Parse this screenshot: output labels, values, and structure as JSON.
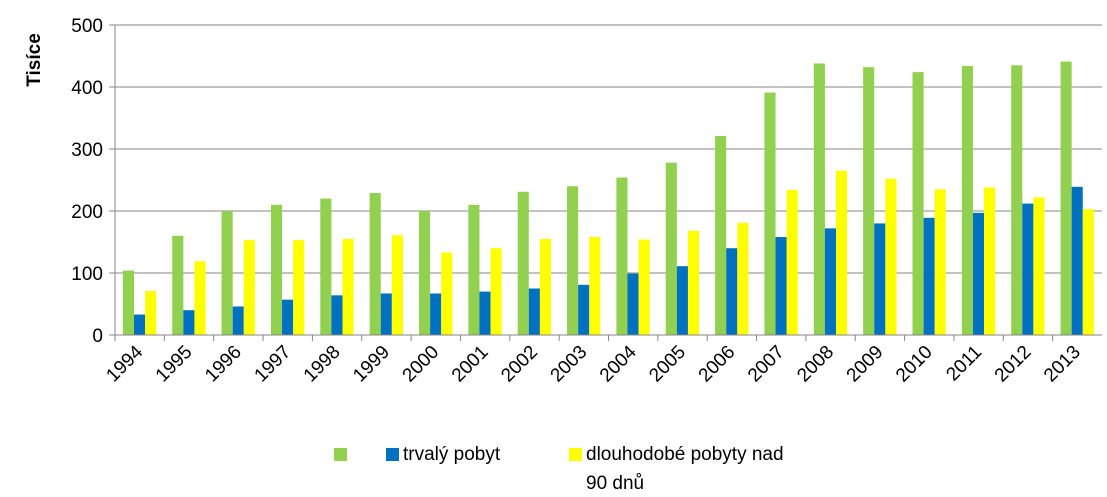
{
  "chart_data": {
    "type": "bar",
    "y_label": "Tisíce",
    "categories": [
      "1994",
      "1995",
      "1996",
      "1997",
      "1998",
      "1999",
      "2000",
      "2001",
      "2002",
      "2003",
      "2004",
      "2005",
      "2006",
      "2007",
      "2008",
      "2009",
      "2010",
      "2011",
      "2012",
      "2013"
    ],
    "series": [
      {
        "color": "#92d050",
        "values": [
          104,
          160,
          200,
          210,
          220,
          229,
          200,
          210,
          231,
          240,
          254,
          278,
          321,
          391,
          438,
          432,
          424,
          434,
          435,
          441
        ]
      },
      {
        "name": "trvalý pobyt",
        "color": "#0070c0",
        "values": [
          33,
          40,
          46,
          57,
          64,
          67,
          67,
          70,
          75,
          81,
          99,
          111,
          140,
          158,
          172,
          180,
          189,
          197,
          212,
          239
        ]
      },
      {
        "name": "dlouhodobé pobyty nad 90 dnů",
        "color": "#ffff00",
        "values": [
          71,
          119,
          153,
          153,
          155,
          161,
          133,
          140,
          155,
          158,
          154,
          168,
          181,
          234,
          265,
          252,
          235,
          238,
          222,
          203
        ]
      }
    ],
    "ylim": [
      0,
      500
    ],
    "yticks": [
      0,
      100,
      200,
      300,
      400,
      500
    ],
    "grid": true,
    "legend": "bottom"
  }
}
